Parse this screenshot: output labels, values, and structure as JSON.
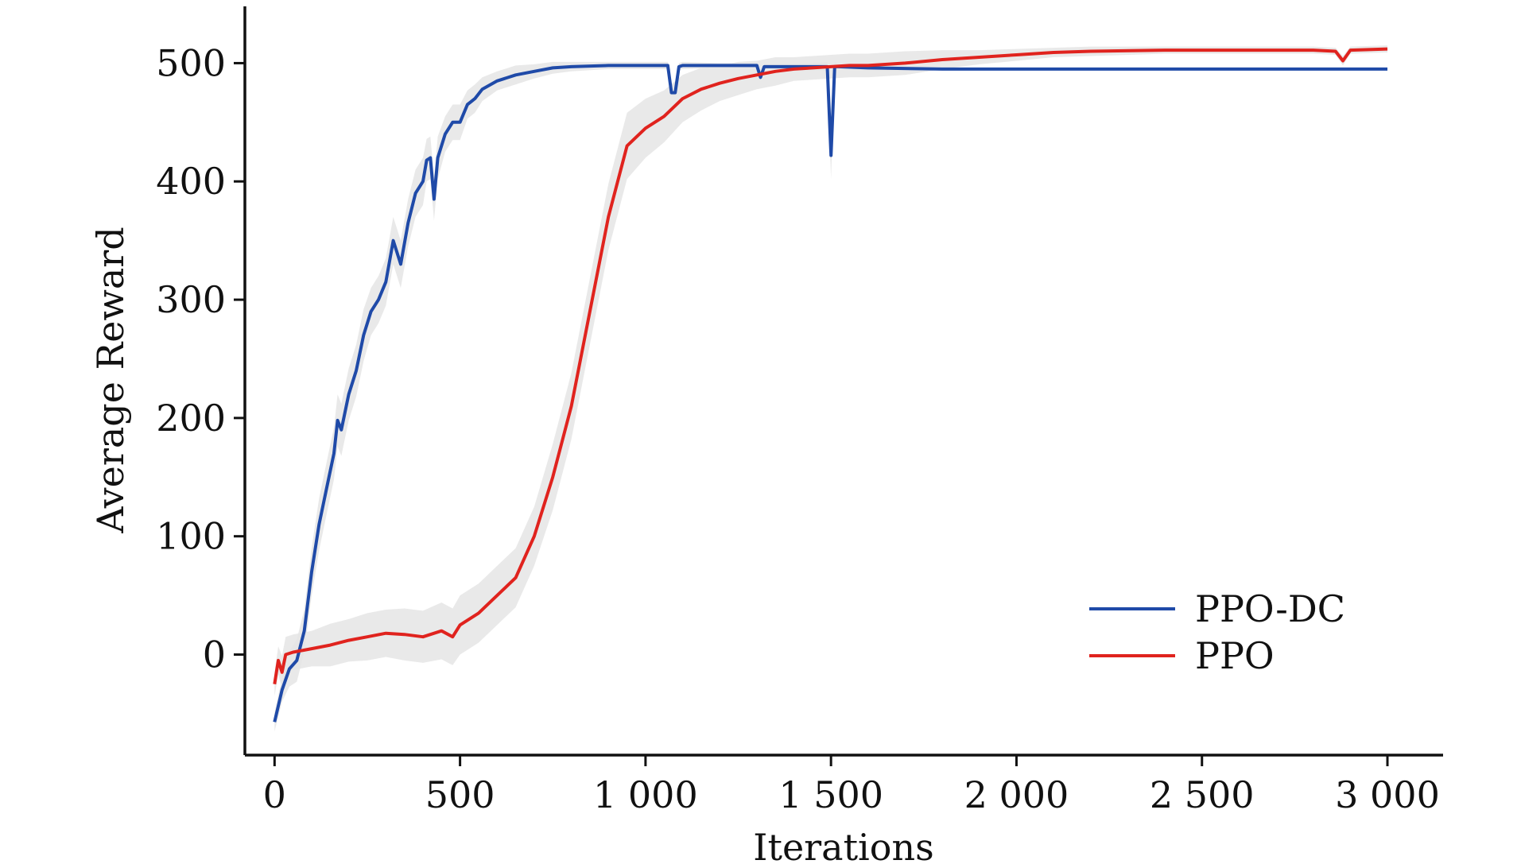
{
  "chart_data": {
    "type": "line",
    "title": "",
    "xlabel": "Iterations",
    "ylabel": "Average Reward",
    "xlim": [
      -80,
      3150
    ],
    "ylim": [
      -85,
      548
    ],
    "xticks": [
      0,
      500,
      1000,
      1500,
      2000,
      2500,
      3000
    ],
    "xtick_labels": [
      "0",
      "500",
      "1 000",
      "1 500",
      "2 000",
      "2 500",
      "3 000"
    ],
    "yticks": [
      0,
      100,
      200,
      300,
      400,
      500
    ],
    "ytick_labels": [
      "0",
      "100",
      "200",
      "300",
      "400",
      "500"
    ],
    "grid": false,
    "legend_position": "bottom-right",
    "band_color": "#e5e5e5",
    "series": [
      {
        "name": "PPO-DC",
        "color": "#1f4aa8",
        "x": [
          0,
          20,
          40,
          60,
          80,
          100,
          120,
          140,
          160,
          170,
          180,
          200,
          220,
          240,
          260,
          280,
          300,
          320,
          340,
          360,
          380,
          400,
          410,
          420,
          430,
          440,
          460,
          480,
          500,
          520,
          540,
          560,
          600,
          650,
          700,
          750,
          800,
          900,
          1000,
          1060,
          1070,
          1080,
          1090,
          1100,
          1200,
          1300,
          1310,
          1320,
          1400,
          1490,
          1500,
          1510,
          1520,
          1600,
          1800,
          2000,
          2500,
          3000
        ],
        "values": [
          -57,
          -30,
          -12,
          -5,
          20,
          70,
          110,
          140,
          170,
          198,
          190,
          220,
          240,
          270,
          290,
          300,
          315,
          350,
          330,
          365,
          390,
          400,
          418,
          420,
          385,
          420,
          440,
          450,
          450,
          465,
          470,
          478,
          485,
          490,
          493,
          496,
          497,
          498,
          498,
          498,
          475,
          475,
          497,
          498,
          498,
          498,
          488,
          497,
          497,
          497,
          422,
          497,
          497,
          496,
          495,
          495,
          495,
          495
        ],
        "band": [
          8,
          10,
          15,
          18,
          18,
          20,
          22,
          22,
          22,
          22,
          22,
          22,
          22,
          22,
          20,
          20,
          20,
          20,
          20,
          20,
          20,
          20,
          18,
          18,
          18,
          18,
          15,
          15,
          15,
          12,
          12,
          10,
          8,
          8,
          6,
          5,
          4,
          3,
          3,
          3,
          3,
          3,
          3,
          3,
          2,
          2,
          2,
          2,
          2,
          4,
          20,
          4,
          2,
          2,
          1,
          1,
          1,
          1
        ]
      },
      {
        "name": "PPO",
        "color": "#e0231e",
        "x": [
          0,
          10,
          20,
          30,
          50,
          100,
          150,
          200,
          250,
          300,
          350,
          400,
          450,
          480,
          500,
          550,
          600,
          650,
          700,
          750,
          800,
          850,
          900,
          950,
          1000,
          1050,
          1100,
          1150,
          1200,
          1250,
          1300,
          1350,
          1400,
          1450,
          1500,
          1550,
          1600,
          1700,
          1800,
          1900,
          2000,
          2100,
          2200,
          2400,
          2600,
          2800,
          2860,
          2880,
          2900,
          3000
        ],
        "values": [
          -25,
          -5,
          -15,
          0,
          2,
          5,
          8,
          12,
          15,
          18,
          17,
          15,
          20,
          15,
          25,
          35,
          50,
          65,
          100,
          150,
          210,
          290,
          370,
          430,
          445,
          455,
          470,
          478,
          483,
          487,
          490,
          493,
          495,
          496,
          497,
          498,
          498,
          500,
          503,
          505,
          507,
          509,
          510,
          511,
          511,
          511,
          510,
          502,
          511,
          512
        ],
        "band": [
          10,
          12,
          14,
          15,
          15,
          15,
          18,
          18,
          20,
          20,
          22,
          22,
          24,
          24,
          25,
          25,
          25,
          25,
          25,
          28,
          28,
          28,
          28,
          28,
          25,
          22,
          20,
          18,
          15,
          14,
          12,
          12,
          10,
          10,
          10,
          10,
          10,
          10,
          8,
          6,
          5,
          4,
          4,
          3,
          3,
          3,
          3,
          4,
          3,
          3
        ]
      }
    ]
  }
}
